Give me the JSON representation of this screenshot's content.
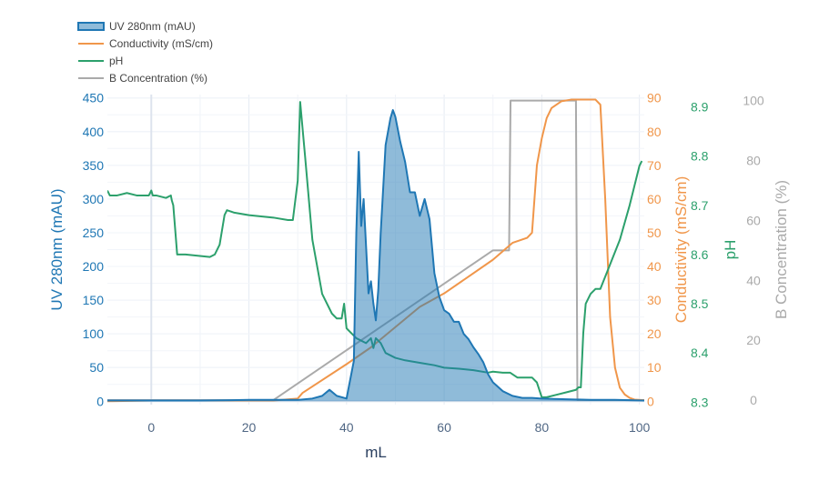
{
  "chart_data": {
    "type": "line",
    "x_axis": {
      "title": "mL",
      "range": [
        -9,
        101
      ],
      "ticks": [
        0,
        20,
        40,
        60,
        80,
        100
      ]
    },
    "y_axes": {
      "uv": {
        "title": "UV 280nm (mAU)",
        "range": [
          -5,
          455
        ],
        "ticks": [
          0,
          50,
          100,
          150,
          200,
          250,
          300,
          350,
          400,
          450
        ],
        "color": "#1f77b4"
      },
      "conductivity": {
        "title": "Conductivity (mS/cm)",
        "range": [
          -1,
          91
        ],
        "ticks": [
          0,
          10,
          20,
          30,
          40,
          50,
          60,
          70,
          80,
          90
        ],
        "color": "#f0964a"
      },
      "ph": {
        "title": "pH",
        "range": [
          8.295,
          8.925
        ],
        "ticks": [
          8.3,
          8.4,
          8.5,
          8.6,
          8.7,
          8.8,
          8.9
        ],
        "color": "#2ca06c"
      },
      "b_conc": {
        "title": "B Concentration (%)",
        "range": [
          -1.5,
          102
        ],
        "ticks": [
          0,
          20,
          40,
          60,
          80,
          100
        ],
        "color": "#aaaaaa"
      }
    },
    "legend": {
      "position": "top-left",
      "entries": [
        "UV 280nm (mAU)",
        "Conductivity (mS/cm)",
        "pH",
        "B Concentration (%)"
      ]
    },
    "grid": true,
    "series": [
      {
        "name": "UV 280nm (mAU)",
        "axis": "uv",
        "fill": true,
        "x": [
          -9,
          0,
          10,
          20,
          30,
          33,
          35,
          36.5,
          38,
          40,
          41.5,
          42,
          42.5,
          43,
          43.5,
          44,
          44.5,
          45,
          45.5,
          46,
          46.5,
          47,
          48,
          49,
          49.5,
          50,
          51,
          52,
          53,
          54,
          55,
          56,
          57,
          58,
          59,
          60,
          61,
          62,
          63,
          64,
          65,
          66,
          67,
          68,
          69,
          70,
          72,
          74,
          76,
          78,
          80,
          85,
          90,
          95,
          101
        ],
        "y": [
          1,
          1,
          1,
          2,
          2,
          4,
          8,
          17,
          8,
          4,
          60,
          250,
          370,
          260,
          300,
          230,
          160,
          178,
          145,
          120,
          165,
          250,
          380,
          420,
          432,
          422,
          385,
          355,
          310,
          310,
          275,
          300,
          270,
          190,
          155,
          135,
          130,
          118,
          118,
          100,
          92,
          80,
          70,
          58,
          40,
          28,
          15,
          8,
          5,
          5,
          4,
          3,
          2,
          2,
          1
        ]
      },
      {
        "name": "Conductivity (mS/cm)",
        "axis": "conductivity",
        "x": [
          -9,
          0,
          10,
          20,
          25,
          30,
          31,
          40,
          45,
          50,
          55,
          60,
          65,
          70,
          74,
          77,
          78,
          78.5,
          79,
          80,
          81,
          82,
          84,
          86,
          88,
          91,
          92,
          93,
          94,
          95,
          96,
          97,
          98,
          99,
          101
        ],
        "y": [
          0,
          0.2,
          0.2,
          0.2,
          0.2,
          0.8,
          2.5,
          11,
          16,
          22,
          28,
          32,
          37,
          42,
          47,
          48.5,
          50,
          60,
          70,
          78,
          84,
          87,
          89,
          89.5,
          89.5,
          89.5,
          88,
          60,
          25,
          10,
          4,
          2,
          1,
          0.5,
          0.3
        ]
      },
      {
        "name": "pH",
        "axis": "ph",
        "x": [
          -9,
          -8.5,
          -7,
          -5,
          -3,
          -1,
          -0.5,
          0,
          0.3,
          1,
          3,
          4,
          4.2,
          4.5,
          5.3,
          7,
          12,
          13,
          14,
          15,
          15.5,
          17,
          20,
          25,
          28,
          29,
          30,
          30.5,
          31.5,
          33,
          35,
          37,
          38,
          39,
          39.5,
          40,
          42,
          44,
          45,
          45.5,
          46,
          47,
          48,
          50,
          52,
          55,
          58,
          60,
          63,
          66,
          69,
          70,
          72,
          73.5,
          75,
          78,
          79,
          80,
          81,
          83,
          85,
          87,
          87.5,
          88,
          88.5,
          89,
          90,
          91,
          92,
          94,
          96,
          98,
          99,
          100,
          100.5
        ],
        "y": [
          8.73,
          8.72,
          8.72,
          8.725,
          8.72,
          8.72,
          8.72,
          8.73,
          8.72,
          8.72,
          8.715,
          8.72,
          8.71,
          8.7,
          8.6,
          8.6,
          8.595,
          8.6,
          8.62,
          8.68,
          8.69,
          8.685,
          8.68,
          8.675,
          8.67,
          8.67,
          8.75,
          8.91,
          8.8,
          8.63,
          8.52,
          8.48,
          8.47,
          8.47,
          8.5,
          8.45,
          8.43,
          8.42,
          8.43,
          8.41,
          8.43,
          8.42,
          8.4,
          8.39,
          8.385,
          8.38,
          8.375,
          8.37,
          8.368,
          8.365,
          8.36,
          8.362,
          8.36,
          8.36,
          8.35,
          8.35,
          8.34,
          8.31,
          8.31,
          8.315,
          8.32,
          8.325,
          8.33,
          8.33,
          8.44,
          8.5,
          8.52,
          8.53,
          8.53,
          8.58,
          8.63,
          8.7,
          8.74,
          8.78,
          8.79
        ]
      },
      {
        "name": "B Concentration (%)",
        "axis": "b_conc",
        "x": [
          -9,
          25,
          70,
          73,
          73.3,
          73.6,
          87,
          87.3,
          101
        ],
        "y": [
          0,
          0,
          50,
          50,
          50,
          100,
          100,
          0,
          0
        ]
      }
    ]
  }
}
